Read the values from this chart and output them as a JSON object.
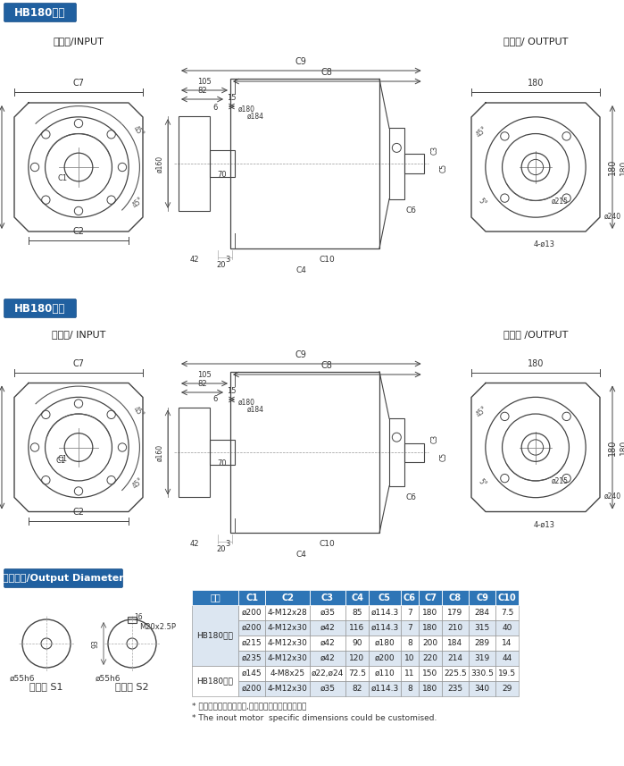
{
  "title_hb180_single": "HB180单段",
  "title_hb180_double": "HB180双段",
  "title_output": "输出轴径/Output Diameter",
  "input_label_single": "输入端/INPUT",
  "output_label_single": "输出端/ OUTPUT",
  "input_label_double": "输入端/ INPUT",
  "output_label_double": "输出端 /OUTPUT",
  "axis_type_s1": "轴型式 S1",
  "axis_type_s2": "轴型式 S2",
  "note1": "* 输入马达连接板之尺寸,可根据客户要求单独定做。",
  "note2": "* The inout motor  specific dimensions could be customised.",
  "table_headers": [
    "尺寸",
    "C1",
    "C2",
    "C3",
    "C4",
    "C5",
    "C6",
    "C7",
    "C8",
    "C9",
    "C10"
  ],
  "table_header_bg": "#2e75b6",
  "table_header_fg": "#ffffff",
  "table_row_bg_light": "#dce6f1",
  "table_row_bg_white": "#ffffff",
  "table_data": [
    [
      "ø200",
      "4-M12x28",
      "ø35",
      "85",
      "ø114.3",
      "7",
      "180",
      "179",
      "284",
      "7.5"
    ],
    [
      "ø200",
      "4-M12x30",
      "ø42",
      "116",
      "ø114.3",
      "7",
      "180",
      "210",
      "315",
      "40"
    ],
    [
      "ø215",
      "4-M12x30",
      "ø42",
      "90",
      "ø180",
      "8",
      "200",
      "184",
      "289",
      "14"
    ],
    [
      "ø235",
      "4-M12x30",
      "ø42",
      "120",
      "ø200",
      "10",
      "220",
      "214",
      "319",
      "44"
    ],
    [
      "ø145",
      "4-M8x25",
      "ø22,ø24",
      "72.5",
      "ø110",
      "11",
      "150",
      "225.5",
      "330.5",
      "19.5"
    ],
    [
      "ø200",
      "4-M12x30",
      "ø35",
      "82",
      "ø114.3",
      "8",
      "180",
      "235",
      "340",
      "29"
    ]
  ],
  "table_row_labels": [
    "HB180单段",
    "HB180双段"
  ],
  "table_row_spans": [
    4,
    2
  ],
  "bg_color": "#ffffff"
}
